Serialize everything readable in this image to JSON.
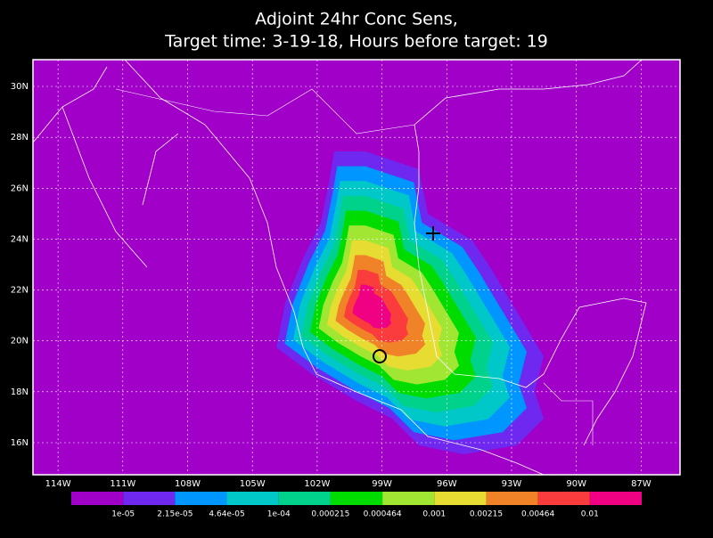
{
  "title": [
    "Adjoint 24hr Conc Sens,",
    "Target time: 3-19-18, Hours before target: 19"
  ],
  "map": {
    "xlim": [
      -115.16,
      -85.2
    ],
    "ylim": [
      14.74,
      31.05
    ],
    "xticks": [
      {
        "value": -114,
        "label": "114W"
      },
      {
        "value": -111,
        "label": "111W"
      },
      {
        "value": -108,
        "label": "108W"
      },
      {
        "value": -105,
        "label": "105W"
      },
      {
        "value": -102,
        "label": "102W"
      },
      {
        "value": -99,
        "label": "99W"
      },
      {
        "value": -96,
        "label": "96W"
      },
      {
        "value": -93,
        "label": "93W"
      },
      {
        "value": -90,
        "label": "90W"
      },
      {
        "value": -87,
        "label": "87W"
      }
    ],
    "yticks": [
      {
        "value": 16,
        "label": "16N"
      },
      {
        "value": 18,
        "label": "18N"
      },
      {
        "value": 20,
        "label": "20N"
      },
      {
        "value": 22,
        "label": "22N"
      },
      {
        "value": 24,
        "label": "24N"
      },
      {
        "value": 26,
        "label": "26N"
      },
      {
        "value": 28,
        "label": "28N"
      },
      {
        "value": 30,
        "label": "30N"
      }
    ]
  },
  "colorbar": {
    "colors": [
      "#a000c8",
      "#6e28f0",
      "#0096ff",
      "#00c8c8",
      "#00d28c",
      "#00dc00",
      "#a0e632",
      "#e6dc32",
      "#f08228",
      "#fa3c3c",
      "#f00082"
    ],
    "labels": [
      "1e-05",
      "2.15e-05",
      "4.64e-05",
      "1e-04",
      "0.000215",
      "0.000464",
      "0.001",
      "0.00215",
      "0.00464",
      "0.01"
    ]
  }
}
